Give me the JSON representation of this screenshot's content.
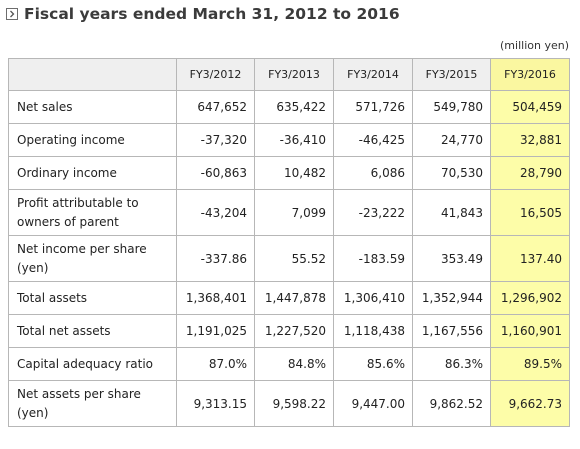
{
  "title": "Fiscal years ended March 31, 2012 to 2016",
  "unit": "(million yen)",
  "columns": [
    "FY3/2012",
    "FY3/2013",
    "FY3/2014",
    "FY3/2015",
    "FY3/2016"
  ],
  "rows": [
    {
      "label": "Net sales",
      "values": [
        "647,652",
        "635,422",
        "571,726",
        "549,780",
        "504,459"
      ]
    },
    {
      "label": "Operating income",
      "values": [
        "-37,320",
        "-36,410",
        "-46,425",
        "24,770",
        "32,881"
      ]
    },
    {
      "label": "Ordinary income",
      "values": [
        "-60,863",
        "10,482",
        "6,086",
        "70,530",
        "28,790"
      ]
    },
    {
      "label": "Profit attributable to owners of parent",
      "values": [
        "-43,204",
        "7,099",
        "-23,222",
        "41,843",
        "16,505"
      ]
    },
    {
      "label": "Net income per share (yen)",
      "values": [
        "-337.86",
        "55.52",
        "-183.59",
        "353.49",
        "137.40"
      ]
    },
    {
      "label": "Total assets",
      "values": [
        "1,368,401",
        "1,447,878",
        "1,306,410",
        "1,352,944",
        "1,296,902"
      ]
    },
    {
      "label": "Total net assets",
      "values": [
        "1,191,025",
        "1,227,520",
        "1,118,438",
        "1,167,556",
        "1,160,901"
      ]
    },
    {
      "label": "Capital adequacy ratio",
      "values": [
        "87.0%",
        "84.8%",
        "85.6%",
        "86.3%",
        "89.5%"
      ]
    },
    {
      "label": "Net assets per share (yen)",
      "values": [
        "9,313.15",
        "9,598.22",
        "9,447.00",
        "9,862.52",
        "9,662.73"
      ]
    }
  ],
  "colors": {
    "highlight": "#fdfda8",
    "header": "#efefef",
    "border": "#b7b7b7"
  },
  "icons": {
    "title": "chevron-right-box-icon"
  }
}
